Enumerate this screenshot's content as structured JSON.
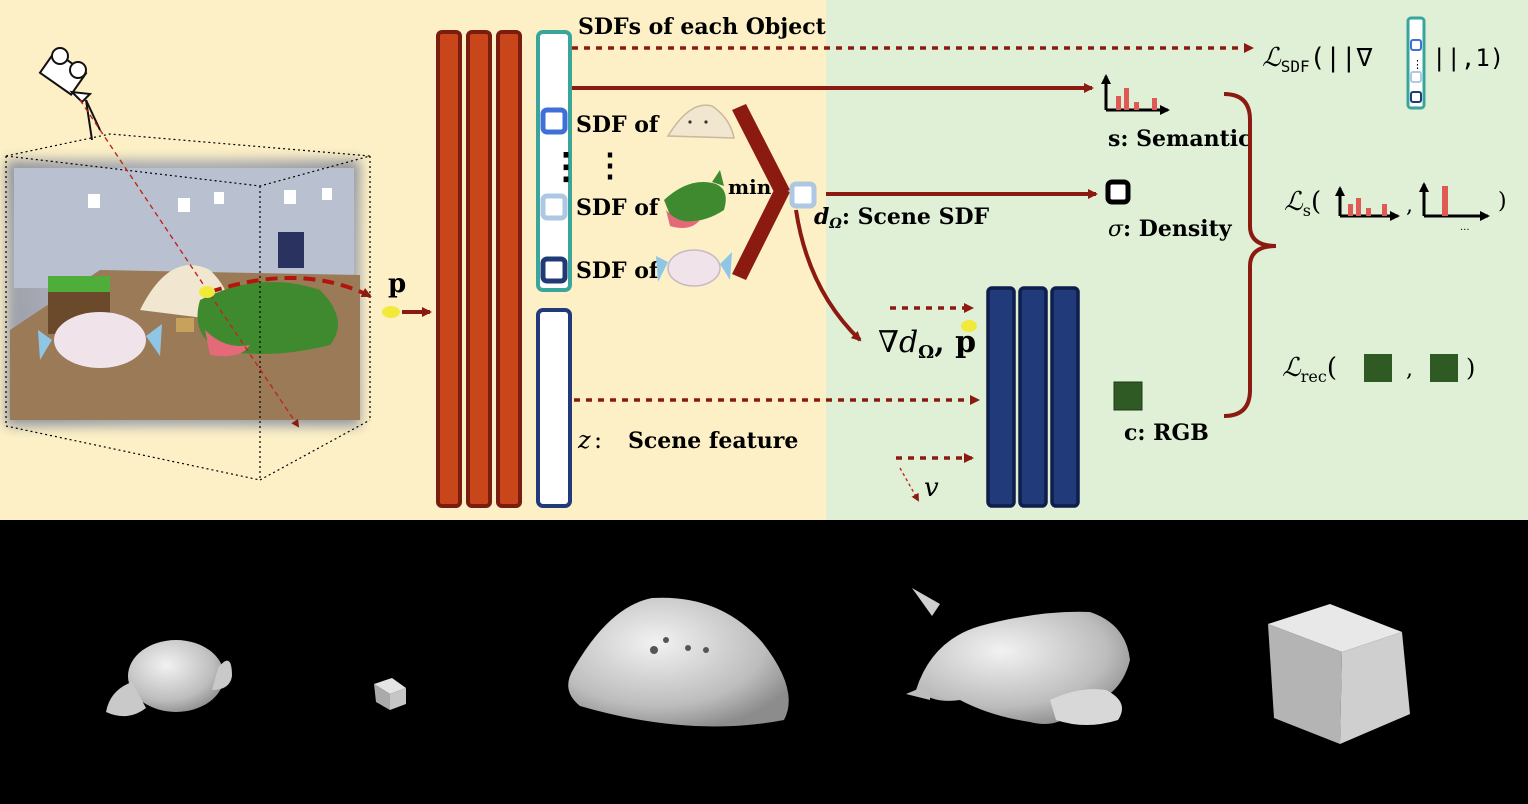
{
  "labels": {
    "sdfs_each_object": "SDFs of each Object",
    "sdf_of": "SDF of",
    "min": "min",
    "p": "p",
    "scene_sdf_symbol": "d",
    "scene_sdf_sub": "Ω",
    "scene_sdf_text": ": Scene SDF",
    "grad_symbol": "∇d",
    "grad_sub": "Ω",
    "grad_p": ", p",
    "z": "z",
    "scene_feature": "Scene feature",
    "v": "v",
    "s_key": "s",
    "semantic": ": Semantic",
    "sigma_key": "σ",
    "density": ": Density",
    "c_key": "c",
    "rgb": ": RGB",
    "loss_L": "ℒ",
    "loss_sdf_sub": "SDF",
    "loss_sdf_open": "(||∇",
    "loss_sdf_close": "||,1)",
    "loss_s_sub": "s",
    "loss_rec_sub": "rec",
    "paren_open": "(",
    "paren_close": ")",
    "comma": ",",
    "vdots": "⋮",
    "ellipsis": "..."
  },
  "colors": {
    "left_bg": "#fdf0c6",
    "right_bg": "#dff0d7",
    "arrow": "#8b1a10",
    "encoder_fill": "#c9461b",
    "encoder_stroke": "#7a1d10",
    "navy": "#213a7a",
    "teal": "#3aa69b",
    "obj_blue": "#3f70d8",
    "obj_light": "#aec7e3",
    "obj_dark": "#1f3a74",
    "rgb_green": "#2f5a24",
    "hist_red": "#e05a55"
  }
}
